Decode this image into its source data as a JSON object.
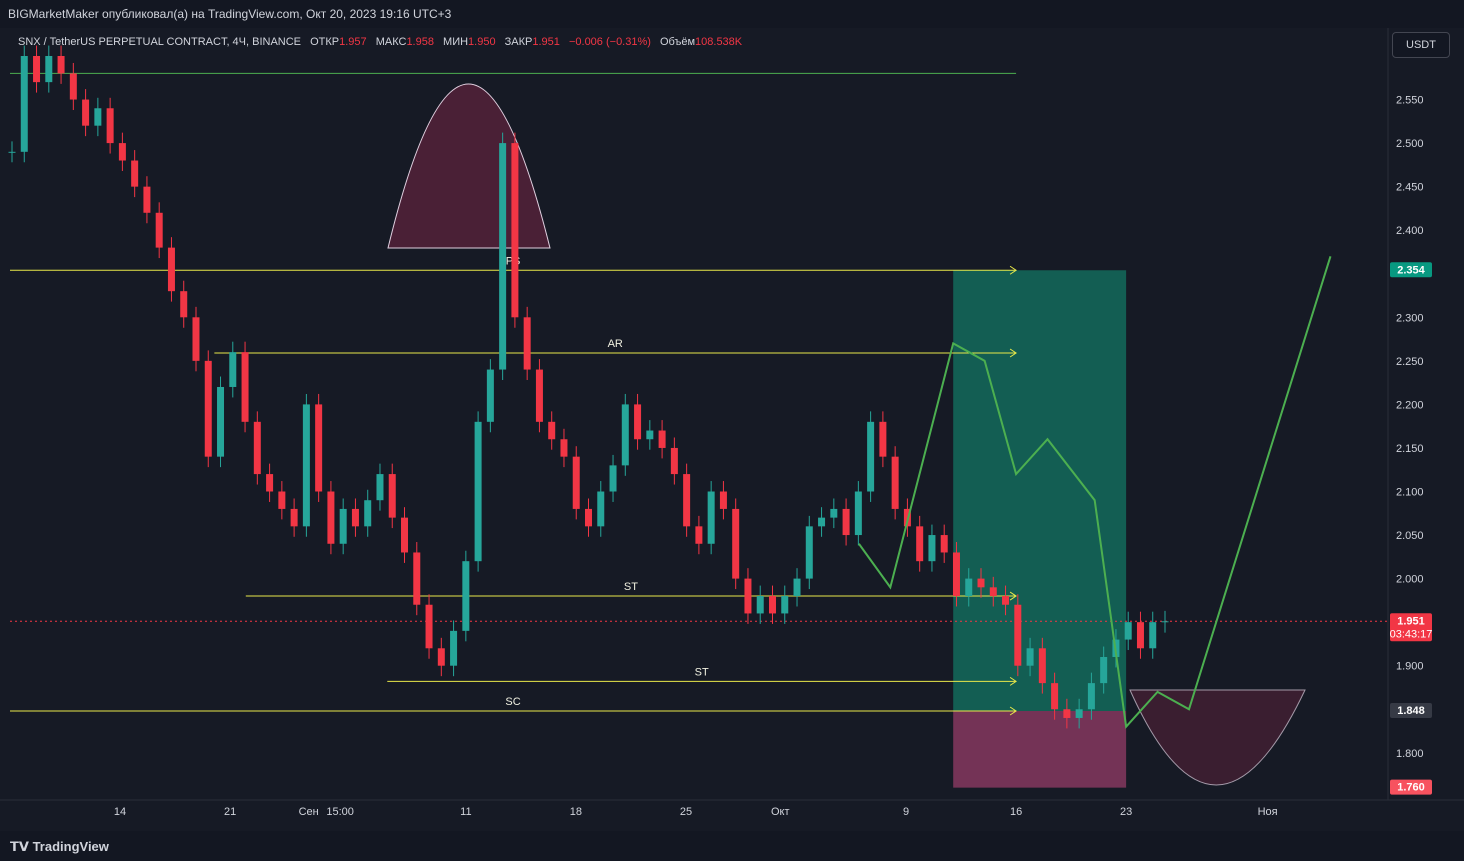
{
  "header": {
    "publisher_line": "BIGMarketMaker опубликовал(а) на TradingView.com, Окт 20, 2023 19:16 UTC+3"
  },
  "legend": {
    "symbol": "SNX / TetherUS PERPETUAL CONTRACT, 4Ч, BINANCE",
    "open_label": "ОТКР",
    "open": "1.957",
    "high_label": "МАКС",
    "high": "1.958",
    "low_label": "МИН",
    "low": "1.950",
    "close_label": "ЗАКР",
    "close": "1.951",
    "change": "−0.006 (−0.31%)",
    "volume_label": "Объём",
    "volume": "108.538K"
  },
  "currency_button": "USDT",
  "footer": {
    "brand": "TradingView"
  },
  "colors": {
    "up": "#26a69a",
    "down": "#f23645",
    "level": "#e8e84a",
    "projection": "#4caf50",
    "target_zone": "#136b5c",
    "stop_zone": "#8c3a63"
  },
  "chart_data": {
    "type": "candlestick",
    "y_ticks": [
      2.55,
      2.5,
      2.45,
      2.4,
      2.3,
      2.25,
      2.2,
      2.15,
      2.1,
      2.05,
      2.0,
      1.9,
      1.8
    ],
    "x_ticks": [
      "14",
      "21",
      "15:00",
      "Сен",
      "11",
      "18",
      "25",
      "Окт",
      "9",
      "16",
      "23",
      "Ноя"
    ],
    "ylim": [
      1.755,
      2.6
    ],
    "price_badges": [
      {
        "value": "2.354",
        "color": "#089981"
      },
      {
        "value": "1.951",
        "sub": "03:43:17",
        "color": "#f23645"
      },
      {
        "value": "1.848",
        "color": "#363a45"
      },
      {
        "value": "1.760",
        "color": "#f7525f"
      }
    ],
    "levels": [
      {
        "label": "",
        "price": 2.58,
        "from": "Aug 7",
        "to": "Oct 16",
        "color": "#4caf50"
      },
      {
        "label": "PS",
        "price": 2.354,
        "from": "Aug 7",
        "to": "Oct 16"
      },
      {
        "label": "AR",
        "price": 2.259,
        "from": "Aug 20",
        "to": "Oct 16"
      },
      {
        "label": "ST",
        "price": 1.98,
        "from": "Aug 22",
        "to": "Oct 16"
      },
      {
        "label": "ST",
        "price": 1.882,
        "from": "Aug 31",
        "to": "Oct 16"
      },
      {
        "label": "SC",
        "price": 1.848,
        "from": "Aug 7",
        "to": "Oct 16"
      }
    ],
    "series": [
      {
        "name": "",
        "values": [
          2.49,
          2.6,
          2.57,
          2.6,
          2.58,
          2.55,
          2.52,
          2.54,
          2.5,
          2.48,
          2.45,
          2.42,
          2.38,
          2.33,
          2.3,
          2.25,
          2.14,
          2.22,
          2.26,
          2.18,
          2.12,
          2.1,
          2.08,
          2.06,
          2.2,
          2.1,
          2.04,
          2.08,
          2.06,
          2.09,
          2.12,
          2.07,
          2.03,
          1.97,
          1.92,
          1.9,
          1.94,
          2.02,
          2.18,
          2.24,
          2.5,
          2.3,
          2.24,
          2.18,
          2.16,
          2.14,
          2.08,
          2.06,
          2.1,
          2.13,
          2.2,
          2.16,
          2.17,
          2.15,
          2.12,
          2.06,
          2.04,
          2.1,
          2.08,
          2.0,
          1.96,
          1.98,
          1.96,
          1.98,
          2.0,
          2.06,
          2.07,
          2.08,
          2.05,
          2.1,
          2.18,
          2.14,
          2.08,
          2.06,
          2.02,
          2.05,
          2.03,
          1.98,
          2.0,
          1.99,
          1.98,
          1.97,
          1.9,
          1.92,
          1.88,
          1.85,
          1.84,
          1.85,
          1.88,
          1.91,
          1.93,
          1.95,
          1.92,
          1.95,
          1.951
        ]
      }
    ],
    "projection_path": [
      {
        "date": "Oct 6",
        "price": 2.04
      },
      {
        "date": "Oct 8",
        "price": 1.99
      },
      {
        "date": "Oct 12",
        "price": 2.27
      },
      {
        "date": "Oct 14",
        "price": 2.25
      },
      {
        "date": "Oct 16",
        "price": 2.12
      },
      {
        "date": "Oct 18",
        "price": 2.16
      },
      {
        "date": "Oct 21",
        "price": 2.09
      },
      {
        "date": "Oct 23",
        "price": 1.83
      },
      {
        "date": "Oct 25",
        "price": 1.87
      },
      {
        "date": "Oct 27",
        "price": 1.85
      },
      {
        "date": "Nov 5",
        "price": 2.37
      }
    ],
    "target_zone": {
      "from": "Oct 12",
      "to": "Oct 23",
      "top": 2.354,
      "bottom": 1.848
    },
    "stop_zone": {
      "from": "Oct 12",
      "to": "Oct 23",
      "top": 1.848,
      "bottom": 1.76
    }
  }
}
